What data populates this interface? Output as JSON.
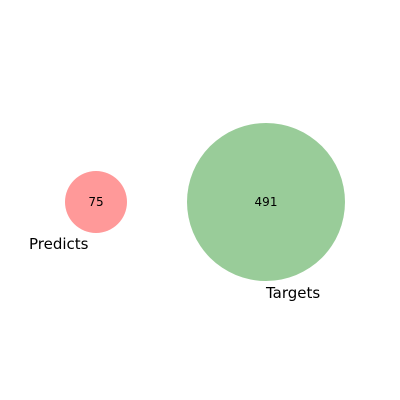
{
  "chart_data": {
    "type": "venn",
    "sets": [
      {
        "name": "Predicts",
        "count": "75",
        "size": 75,
        "color": "#ff9999"
      },
      {
        "name": "Targets",
        "count": "491",
        "size": 491,
        "color": "#99cc99"
      }
    ],
    "intersection": 0
  }
}
